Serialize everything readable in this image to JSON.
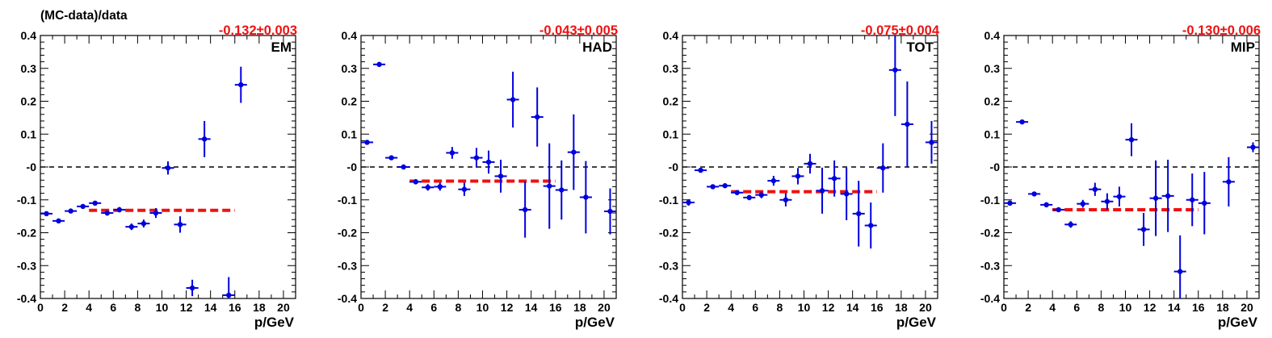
{
  "figure": {
    "ylabel": "(MC-data)/data",
    "xlabel": "p/GeV",
    "colors": {
      "points": "#0000dd",
      "fit": "#ee1111",
      "result_text": "#ee1111",
      "zero_line": "#000000",
      "axes": "#000000"
    }
  },
  "chart_data": [
    {
      "type": "scatter",
      "panel_label": "EM",
      "result_label": "-0.132±0.003",
      "xlim": [
        0,
        21
      ],
      "ylim": [
        -0.4,
        0.4
      ],
      "xticks": [
        "0",
        "2",
        "4",
        "6",
        "8",
        "10",
        "12",
        "14",
        "16",
        "18",
        "20"
      ],
      "yticks": [
        "-0.4",
        "-0.3",
        "-0.2",
        "-0.1",
        "-0",
        "0.1",
        "0.2",
        "0.3",
        "0.4"
      ],
      "xlabel": "p/GeV",
      "zero_line": 0,
      "fit": {
        "value": -0.132,
        "x_range": [
          4,
          16
        ]
      },
      "points": [
        {
          "x": 0.5,
          "y": -0.142,
          "err": 0.005
        },
        {
          "x": 1.5,
          "y": -0.164,
          "err": 0.005
        },
        {
          "x": 2.5,
          "y": -0.134,
          "err": 0.005
        },
        {
          "x": 3.5,
          "y": -0.12,
          "err": 0.005
        },
        {
          "x": 4.5,
          "y": -0.11,
          "err": 0.005
        },
        {
          "x": 5.5,
          "y": -0.14,
          "err": 0.008
        },
        {
          "x": 6.5,
          "y": -0.13,
          "err": 0.008
        },
        {
          "x": 7.5,
          "y": -0.182,
          "err": 0.01
        },
        {
          "x": 8.5,
          "y": -0.172,
          "err": 0.012
        },
        {
          "x": 9.5,
          "y": -0.14,
          "err": 0.015
        },
        {
          "x": 10.5,
          "y": -0.003,
          "err": 0.02
        },
        {
          "x": 11.5,
          "y": -0.175,
          "err": 0.025
        },
        {
          "x": 12.5,
          "y": -0.368,
          "err": 0.025
        },
        {
          "x": 13.5,
          "y": 0.085,
          "err": 0.055
        },
        {
          "x": 15.5,
          "y": -0.39,
          "err": 0.055
        },
        {
          "x": 16.5,
          "y": 0.25,
          "err": 0.055
        }
      ]
    },
    {
      "type": "scatter",
      "panel_label": "HAD",
      "result_label": "-0.043±0.005",
      "xlim": [
        0,
        21
      ],
      "ylim": [
        -0.4,
        0.4
      ],
      "xticks": [
        "0",
        "2",
        "4",
        "6",
        "8",
        "10",
        "12",
        "14",
        "16",
        "18",
        "20"
      ],
      "yticks": [
        "-0.4",
        "-0.3",
        "-0.2",
        "-0.1",
        "-0",
        "0.1",
        "0.2",
        "0.3",
        "0.4"
      ],
      "xlabel": "p/GeV",
      "zero_line": 0,
      "fit": {
        "value": -0.043,
        "x_range": [
          4,
          16
        ]
      },
      "points": [
        {
          "x": 0.5,
          "y": 0.075,
          "err": 0.005
        },
        {
          "x": 1.5,
          "y": 0.312,
          "err": 0.005
        },
        {
          "x": 2.5,
          "y": 0.028,
          "err": 0.005
        },
        {
          "x": 3.5,
          "y": 0.0,
          "err": 0.005
        },
        {
          "x": 4.5,
          "y": -0.045,
          "err": 0.008
        },
        {
          "x": 5.5,
          "y": -0.062,
          "err": 0.01
        },
        {
          "x": 6.5,
          "y": -0.06,
          "err": 0.012
        },
        {
          "x": 7.5,
          "y": 0.043,
          "err": 0.018
        },
        {
          "x": 8.5,
          "y": -0.068,
          "err": 0.02
        },
        {
          "x": 9.5,
          "y": 0.028,
          "err": 0.03
        },
        {
          "x": 10.5,
          "y": 0.015,
          "err": 0.035
        },
        {
          "x": 11.5,
          "y": -0.028,
          "err": 0.05
        },
        {
          "x": 12.5,
          "y": 0.205,
          "err": 0.085
        },
        {
          "x": 13.5,
          "y": -0.13,
          "err": 0.085
        },
        {
          "x": 14.5,
          "y": 0.152,
          "err": 0.09
        },
        {
          "x": 15.5,
          "y": -0.058,
          "err": 0.13
        },
        {
          "x": 16.5,
          "y": -0.07,
          "err": 0.09
        },
        {
          "x": 17.5,
          "y": 0.045,
          "err": 0.115
        },
        {
          "x": 18.5,
          "y": -0.092,
          "err": 0.11
        },
        {
          "x": 20.5,
          "y": -0.135,
          "err": 0.07
        }
      ]
    },
    {
      "type": "scatter",
      "panel_label": "TOT",
      "result_label": "-0.075±0.004",
      "xlim": [
        0,
        21
      ],
      "ylim": [
        -0.4,
        0.4
      ],
      "xticks": [
        "0",
        "2",
        "4",
        "6",
        "8",
        "10",
        "12",
        "14",
        "16",
        "18",
        "20"
      ],
      "yticks": [
        "-0.4",
        "-0.3",
        "-0.2",
        "-0.1",
        "-0",
        "0.1",
        "0.2",
        "0.3",
        "0.4"
      ],
      "xlabel": "p/GeV",
      "zero_line": 0,
      "fit": {
        "value": -0.075,
        "x_range": [
          4,
          16
        ]
      },
      "points": [
        {
          "x": 0.5,
          "y": -0.108,
          "err": 0.01
        },
        {
          "x": 1.5,
          "y": -0.01,
          "err": 0.005
        },
        {
          "x": 2.5,
          "y": -0.06,
          "err": 0.005
        },
        {
          "x": 3.5,
          "y": -0.057,
          "err": 0.005
        },
        {
          "x": 4.5,
          "y": -0.078,
          "err": 0.006
        },
        {
          "x": 5.5,
          "y": -0.093,
          "err": 0.008
        },
        {
          "x": 6.5,
          "y": -0.085,
          "err": 0.01
        },
        {
          "x": 7.5,
          "y": -0.042,
          "err": 0.015
        },
        {
          "x": 8.5,
          "y": -0.1,
          "err": 0.02
        },
        {
          "x": 9.5,
          "y": -0.028,
          "err": 0.025
        },
        {
          "x": 10.5,
          "y": 0.01,
          "err": 0.03
        },
        {
          "x": 11.5,
          "y": -0.072,
          "err": 0.07
        },
        {
          "x": 12.5,
          "y": -0.035,
          "err": 0.055
        },
        {
          "x": 13.5,
          "y": -0.082,
          "err": 0.08
        },
        {
          "x": 14.5,
          "y": -0.142,
          "err": 0.1
        },
        {
          "x": 15.5,
          "y": -0.178,
          "err": 0.07
        },
        {
          "x": 16.5,
          "y": -0.003,
          "err": 0.075
        },
        {
          "x": 17.5,
          "y": 0.295,
          "err": 0.14
        },
        {
          "x": 18.5,
          "y": 0.13,
          "err": 0.13
        },
        {
          "x": 20.5,
          "y": 0.075,
          "err": 0.065
        }
      ]
    },
    {
      "type": "scatter",
      "panel_label": "MIP",
      "result_label": "-0.130±0.006",
      "xlim": [
        0,
        21
      ],
      "ylim": [
        -0.4,
        0.4
      ],
      "xticks": [
        "0",
        "2",
        "4",
        "6",
        "8",
        "10",
        "12",
        "14",
        "16",
        "18",
        "20"
      ],
      "yticks": [
        "-0.4",
        "-0.3",
        "-0.2",
        "-0.1",
        "-0",
        "0.1",
        "0.2",
        "0.3",
        "0.4"
      ],
      "xlabel": "p/GeV",
      "zero_line": 0,
      "fit": {
        "value": -0.13,
        "x_range": [
          4,
          16
        ]
      },
      "points": [
        {
          "x": 0.5,
          "y": -0.11,
          "err": 0.008
        },
        {
          "x": 1.5,
          "y": 0.137,
          "err": 0.005
        },
        {
          "x": 2.5,
          "y": -0.082,
          "err": 0.005
        },
        {
          "x": 3.5,
          "y": -0.115,
          "err": 0.005
        },
        {
          "x": 4.5,
          "y": -0.13,
          "err": 0.006
        },
        {
          "x": 5.5,
          "y": -0.175,
          "err": 0.01
        },
        {
          "x": 6.5,
          "y": -0.112,
          "err": 0.012
        },
        {
          "x": 7.5,
          "y": -0.068,
          "err": 0.02
        },
        {
          "x": 8.5,
          "y": -0.105,
          "err": 0.025
        },
        {
          "x": 9.5,
          "y": -0.09,
          "err": 0.03
        },
        {
          "x": 10.5,
          "y": 0.083,
          "err": 0.05
        },
        {
          "x": 11.5,
          "y": -0.19,
          "err": 0.05
        },
        {
          "x": 12.5,
          "y": -0.095,
          "err": 0.115
        },
        {
          "x": 13.5,
          "y": -0.088,
          "err": 0.11
        },
        {
          "x": 14.5,
          "y": -0.318,
          "err": 0.11
        },
        {
          "x": 15.5,
          "y": -0.1,
          "err": 0.08
        },
        {
          "x": 16.5,
          "y": -0.11,
          "err": 0.095
        },
        {
          "x": 18.5,
          "y": -0.045,
          "err": 0.075
        },
        {
          "x": 20.5,
          "y": 0.06,
          "err": 0.015
        }
      ]
    }
  ]
}
